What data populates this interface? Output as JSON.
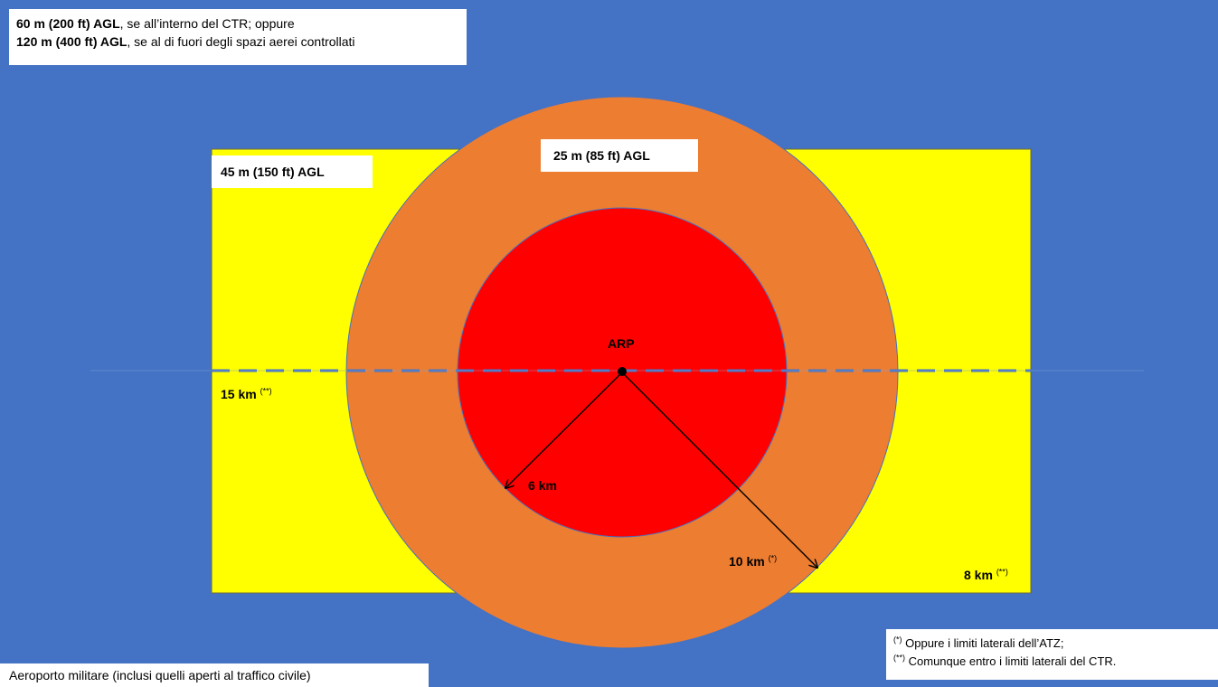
{
  "altitude_limits": {
    "line1_bold": "60 m (200 ft) AGL",
    "line1_rest": ", se all’interno del CTR; oppure",
    "line2_bold": "120 m (400 ft) AGL",
    "line2_rest": ", se al di fuori degli spazi aerei controllati"
  },
  "zones": {
    "yellow_altitude": "45 m (150 ft) AGL",
    "orange_altitude": "25 m (85 ft) AGL"
  },
  "labels": {
    "arp": "ARP",
    "dist_15km": "15 km",
    "dist_6km": "6 km",
    "dist_10km": "10 km",
    "dist_8km": "8 km",
    "mark_single": "(*)",
    "mark_double": "(**)"
  },
  "footnotes": {
    "note1_mark": "(*)",
    "note1_text": "Oppure i limiti laterali dell’ATZ;",
    "note2_mark": "(**)",
    "note2_text": "Comunque entro i limiti laterali del CTR."
  },
  "caption": "Aeroporto militare (inclusi quelli aperti al traffico civile)",
  "colors": {
    "background": "#4472c4",
    "yellow_zone": "#ffff00",
    "orange_zone": "#ed7d31",
    "red_zone": "#ff0000",
    "dashed_line": "#4472c4"
  }
}
